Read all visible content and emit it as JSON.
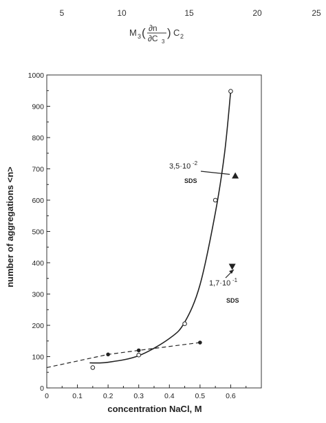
{
  "top_strip": {
    "ticks": [
      "5",
      "10",
      "15",
      "20",
      "25"
    ],
    "formula": {
      "m": "M",
      "sub3": "3",
      "lparen": "(",
      "num": "∂n",
      "den_d": "∂C",
      "den_sub": "3",
      "rparen": ")",
      "c": "C",
      "sub2": "2"
    }
  },
  "chart_data": {
    "type": "line",
    "xlabel": "concentration NaCl, M",
    "ylabel": "number of aggregations <n>",
    "xlim": [
      0,
      0.7
    ],
    "ylim": [
      0,
      1000
    ],
    "x_ticks": [
      0,
      0.1,
      0.2,
      0.3,
      0.4,
      0.5,
      0.6
    ],
    "x_tick_labels": [
      "0",
      "0.1",
      "0.2",
      "0.3",
      "0.4",
      "0.5",
      "0.6"
    ],
    "y_ticks": [
      0,
      100,
      200,
      300,
      400,
      500,
      600,
      700,
      800,
      900,
      1000
    ],
    "y_tick_labels": [
      "0",
      "100",
      "200",
      "300",
      "400",
      "500",
      "600",
      "700",
      "800",
      "900",
      "1000"
    ],
    "grid": false,
    "series": [
      {
        "style": "solid",
        "marker": "open-circle",
        "points": [
          [
            0.15,
            65
          ],
          [
            0.3,
            105
          ],
          [
            0.45,
            205
          ],
          [
            0.55,
            600
          ],
          [
            0.6,
            948
          ]
        ]
      },
      {
        "style": "dashed",
        "marker": "filled-circle",
        "points": [
          [
            0.2,
            107
          ],
          [
            0.3,
            120
          ],
          [
            0.5,
            145
          ]
        ]
      }
    ],
    "annotations": [
      {
        "line1": "3,5·10",
        "exp": "-2",
        "line2": "SDS",
        "marker": "up-triangle",
        "marker_xy": [
          0.615,
          678
        ]
      },
      {
        "line1": "1,7·10",
        "exp": "-1",
        "line2": "SDS",
        "marker": "down-triangle",
        "marker_xy": [
          0.605,
          388
        ]
      }
    ],
    "colors": {
      "ink": "#222222",
      "background": "#ffffff"
    }
  }
}
